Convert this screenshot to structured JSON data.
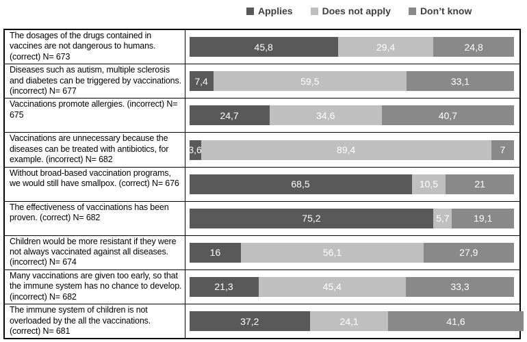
{
  "legend": [
    {
      "key": "applies",
      "label": "Applies",
      "color": "#595959"
    },
    {
      "key": "does-not-apply",
      "label": "Does not apply",
      "color": "#bfbfbf"
    },
    {
      "key": "dont-know",
      "label": "Don’t know",
      "color": "#898989"
    }
  ],
  "chart_data": {
    "type": "bar",
    "orientation": "horizontal",
    "stacked": true,
    "unit": "percent",
    "xlim": [
      0,
      100
    ],
    "grid": false,
    "legend_position": "top",
    "decimal_separator": ",",
    "series_keys": [
      "applies",
      "does-not-apply",
      "dont-know"
    ],
    "series_names": [
      "Applies",
      "Does not apply",
      "Don’t know"
    ],
    "series_colors": [
      "#595959",
      "#bfbfbf",
      "#898989"
    ],
    "rows": [
      {
        "label": "The dosages of the drugs contained in vaccines are not dangerous to humans. (correct) N= 673",
        "values": [
          45.8,
          29.4,
          24.8
        ],
        "display": [
          "45,8",
          "29,4",
          "24,8"
        ]
      },
      {
        "label": "Diseases such as autism, multiple sclerosis and diabetes can be triggered by vaccinations. (incorrect) N= 677",
        "values": [
          7.4,
          59.5,
          33.1
        ],
        "display": [
          "7,4",
          "59,5",
          "33,1"
        ]
      },
      {
        "label": "Vaccinations promote allergies. (incorrect) N= 675",
        "values": [
          24.7,
          34.6,
          40.7
        ],
        "display": [
          "24,7",
          "34,6",
          "40,7"
        ]
      },
      {
        "label": "Vaccinations are unnecessary because the diseases can be treated with antibiotics, for example. (incorrect) N= 682",
        "values": [
          3.6,
          89.4,
          7
        ],
        "display": [
          "3,6",
          "89,4",
          "7"
        ]
      },
      {
        "label": "Without broad-based vaccination programs, we would still have smallpox. (correct) N= 676",
        "values": [
          68.5,
          10.5,
          21
        ],
        "display": [
          "68,5",
          "10,5",
          "21"
        ]
      },
      {
        "label": "The effectiveness of vaccinations has been proven. (correct) N= 682",
        "values": [
          75.2,
          5.7,
          19.1
        ],
        "display": [
          "75,2",
          "5,7",
          "19,1"
        ]
      },
      {
        "label": "Children would be more resistant if they were not always vaccinated against all diseases. (incorrect) N= 674",
        "values": [
          16,
          56.1,
          27.9
        ],
        "display": [
          "16",
          "56,1",
          "27,9"
        ]
      },
      {
        "label": "Many vaccinations are given too early, so that the immune system has no chance to develop. (incorrect) N= 682",
        "values": [
          21.3,
          45.4,
          33.3
        ],
        "display": [
          "21,3",
          "45,4",
          "33,3"
        ]
      },
      {
        "label": "The immune system of children is not overloaded by the all the vaccinations. (correct) N= 681",
        "values": [
          37.2,
          24.1,
          41.6
        ],
        "display": [
          "37,2",
          "24,1",
          "41,6"
        ]
      }
    ]
  }
}
